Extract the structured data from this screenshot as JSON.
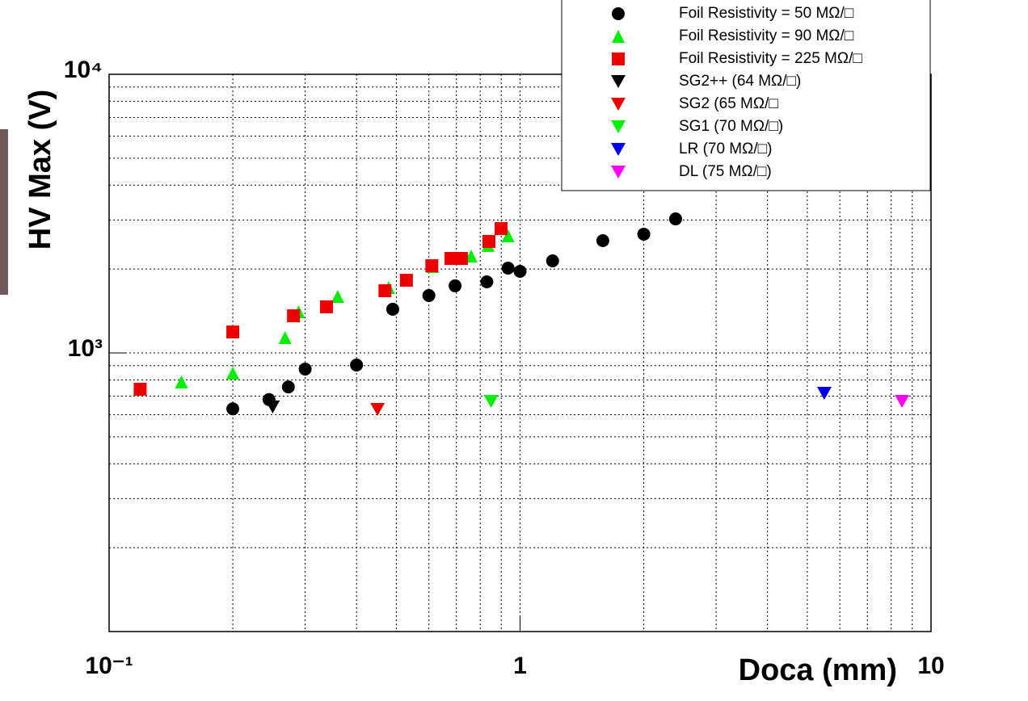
{
  "chart_data": {
    "type": "scatter",
    "x_label": "Doca (mm)",
    "y_label": "HV Max (V)",
    "xlog": true,
    "ylog": true,
    "grid": true,
    "legend": "top-right",
    "xlim": [
      0.1,
      10
    ],
    "ylim": [
      100,
      10000
    ],
    "xticks": [
      {
        "value": 0.1,
        "label": "10⁻¹"
      },
      1,
      {
        "value": 10,
        "label": "10"
      }
    ],
    "yticks": [
      {
        "value": 1000,
        "label": "10³"
      },
      {
        "value": 10000,
        "label": "10⁴"
      }
    ],
    "xminorticks": [
      0.2,
      0.3,
      0.4,
      0.5,
      0.6,
      0.7,
      0.8,
      0.9,
      2,
      3,
      4,
      5,
      6,
      7,
      8,
      9
    ],
    "yminorticks": [
      200,
      300,
      400,
      500,
      600,
      700,
      800,
      900,
      2000,
      3000,
      4000,
      5000,
      6000,
      7000,
      8000,
      9000
    ],
    "series": [
      {
        "name": "Foil Resistivity =  50 MΩ/□",
        "color": "#000000",
        "marker": "circle",
        "x": [
          0.2,
          0.245,
          0.273,
          0.3,
          0.4,
          0.49,
          0.6,
          0.695,
          0.83,
          0.935,
          1.0,
          1.2,
          1.59,
          2.0,
          2.39
        ],
        "values": [
          630,
          680,
          755,
          875,
          905,
          1435,
          1607,
          1741,
          1799,
          2015,
          1963,
          2140,
          2529,
          2668,
          3027
        ]
      },
      {
        "name": "Foil Resistivity =  90 MΩ/□",
        "color": "#00ee00",
        "marker": "triangle-up",
        "x": [
          0.15,
          0.2,
          0.268,
          0.289,
          0.36,
          0.479,
          0.612,
          0.76,
          0.836,
          0.935
        ],
        "values": [
          787,
          847,
          1135,
          1406,
          1596,
          1717,
          2042,
          2228,
          2430,
          2631
        ]
      },
      {
        "name": "Foil Resistivity = 225 MΩ/□",
        "color": "#ee0000",
        "marker": "square",
        "x": [
          0.119,
          0.2,
          0.281,
          0.338,
          0.469,
          0.529,
          0.61,
          0.679,
          0.72,
          0.84,
          0.899
        ],
        "values": [
          741,
          1189,
          1359,
          1464,
          1672,
          1823,
          2056,
          2183,
          2183,
          2512,
          2794
        ]
      },
      {
        "name": "SG2++ (64 MΩ/□)",
        "color": "#000000",
        "marker": "triangle-down",
        "x": [
          0.25
        ],
        "values": [
          640
        ]
      },
      {
        "name": "SG2 (65 MΩ/□",
        "color": "#ee0000",
        "marker": "triangle-down",
        "x": [
          0.45
        ],
        "values": [
          627
        ]
      },
      {
        "name": "SG1 (70 MΩ/□)",
        "color": "#00ee00",
        "marker": "triangle-down",
        "x": [
          0.85
        ],
        "values": [
          670
        ]
      },
      {
        "name": "LR (70 MΩ/□)",
        "color": "#0000ee",
        "marker": "triangle-down",
        "x": [
          5.5
        ],
        "values": [
          716
        ]
      },
      {
        "name": "DL (75 MΩ/□)",
        "color": "#ff00ff",
        "marker": "triangle-down",
        "x": [
          8.5
        ],
        "values": [
          670
        ]
      }
    ]
  }
}
